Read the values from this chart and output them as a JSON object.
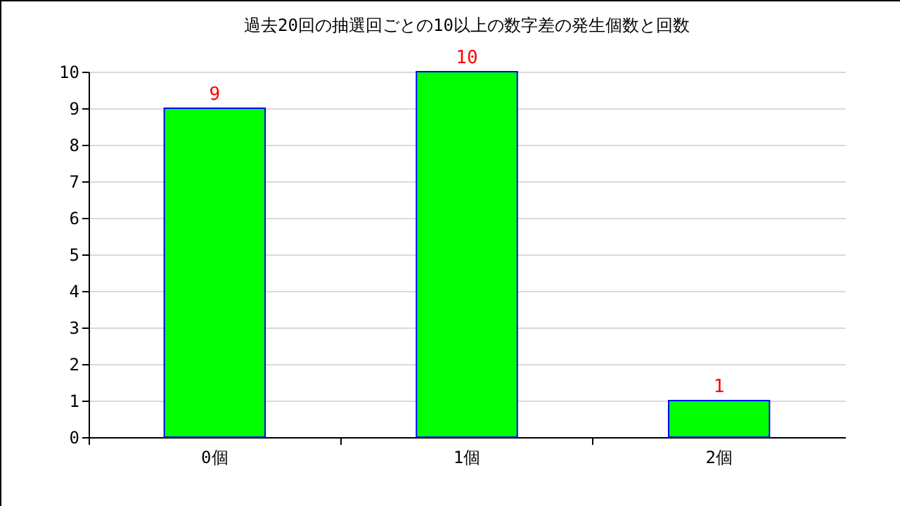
{
  "chart_data": {
    "type": "bar",
    "title": "過去20回の抽選回ごとの10以上の数字差の発生個数と回数",
    "categories": [
      "0個",
      "1個",
      "2個"
    ],
    "series": [
      {
        "color": "#00ff00",
        "values": [
          9,
          10,
          1
        ]
      }
    ],
    "ylim": [
      0,
      10
    ],
    "yticks": [
      0,
      1,
      2,
      3,
      4,
      5,
      6,
      7,
      8,
      9,
      10
    ],
    "grid": "y",
    "data_labels": true
  }
}
